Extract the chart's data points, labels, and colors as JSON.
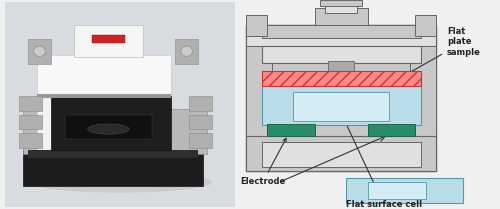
{
  "bg_color": "#f0f0f0",
  "photo_bg": "#d8d8d8",
  "light_blue": "#b8dde8",
  "light_blue2": "#d4ecf4",
  "red_hatch_color": "#ff8888",
  "green_electrode": "#2a8a6a",
  "gray_frame": "#c8c8c8",
  "gray_inner": "#e0e0e0",
  "gray_dark": "#888888",
  "gray_shaft": "#aaaaaa",
  "text_color": "#222222",
  "border_color": "#666666",
  "labels": {
    "flat_plate_sample": "Flat\nplate\nsample",
    "electrode": "Electrode",
    "flat_surface_cell": "Flat surface cell"
  },
  "photo": {
    "bg": "#d0d0d8",
    "body_main": "#e8e8e8",
    "body_white": "#f0f0f0",
    "black_base": "#1a1a1a",
    "black_front": "#222222",
    "silver": "#cccccc",
    "dark_silver": "#aaaaaa",
    "red_indicator": "#cc2222"
  }
}
